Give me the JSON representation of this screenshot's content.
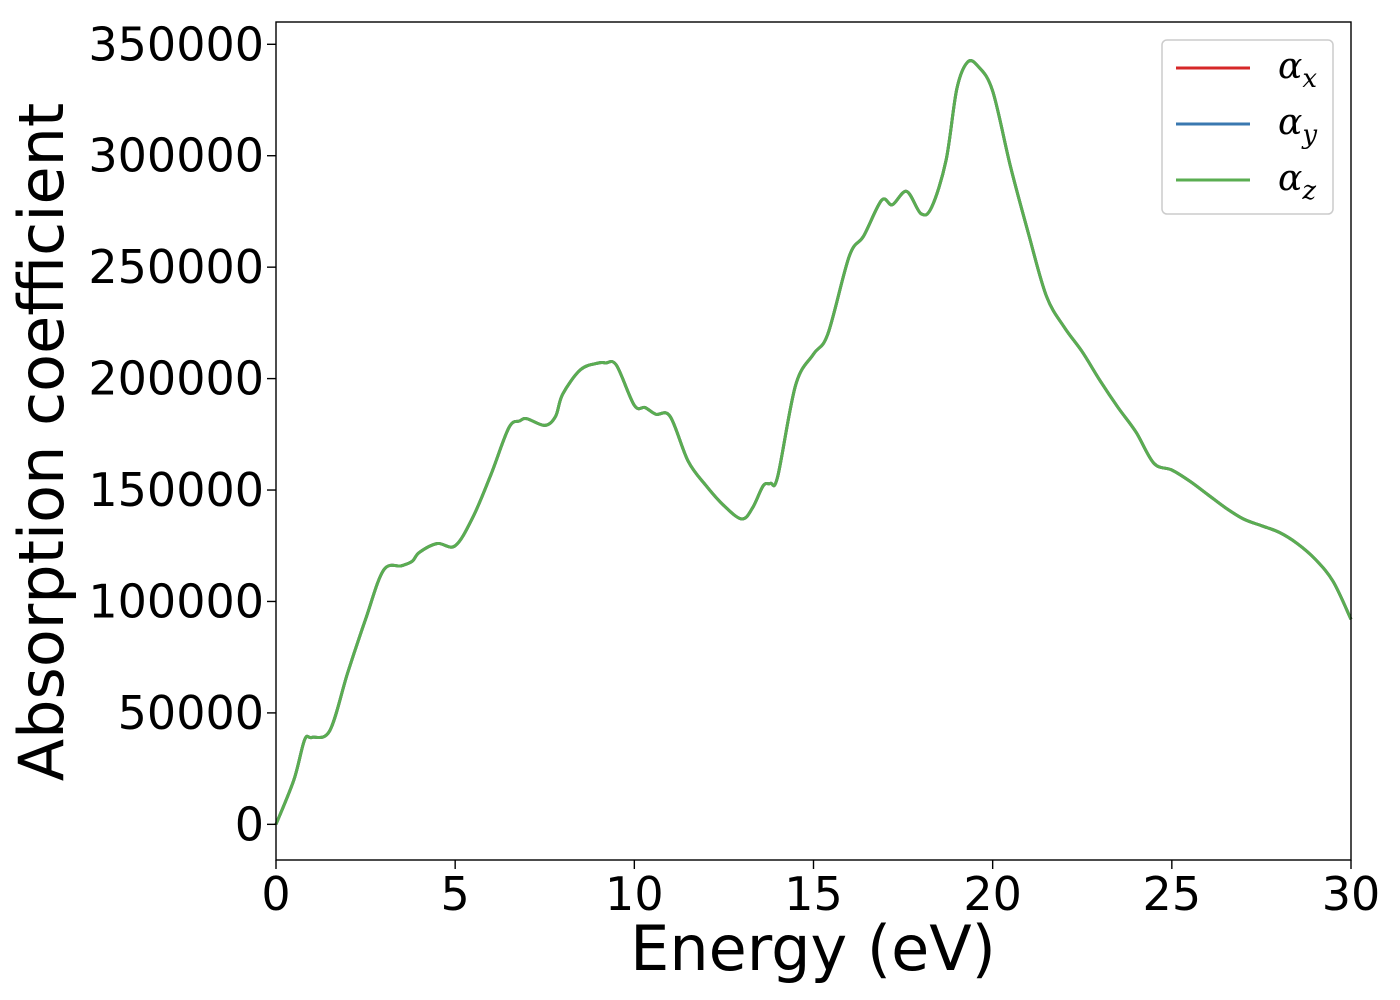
{
  "chart_data": {
    "type": "line",
    "title": "",
    "xlabel": "Energy (eV)",
    "ylabel": "Absorption coefficient",
    "xlim": [
      0,
      30
    ],
    "ylim": [
      -16000,
      360000
    ],
    "xticks": [
      0,
      5,
      10,
      15,
      20,
      25,
      30
    ],
    "xtick_labels": [
      "0",
      "5",
      "10",
      "15",
      "20",
      "25",
      "30"
    ],
    "yticks": [
      0,
      50000,
      100000,
      150000,
      200000,
      250000,
      300000,
      350000
    ],
    "ytick_labels": [
      "0",
      "50000",
      "100000",
      "150000",
      "200000",
      "250000",
      "300000",
      "350000"
    ],
    "grid": false,
    "legend_position": "top-right",
    "x": [
      0,
      0.5,
      0.8,
      1.0,
      1.5,
      2.0,
      2.5,
      3.0,
      3.5,
      3.8,
      4.0,
      4.5,
      5.0,
      5.5,
      6.0,
      6.5,
      6.8,
      7.0,
      7.5,
      7.8,
      8.0,
      8.5,
      9.0,
      9.2,
      9.5,
      10.0,
      10.3,
      10.6,
      11.0,
      11.5,
      12.0,
      12.5,
      13.0,
      13.3,
      13.6,
      13.8,
      14.0,
      14.5,
      15.0,
      15.4,
      16.0,
      16.4,
      16.9,
      17.2,
      17.6,
      18.0,
      18.3,
      18.7,
      19.0,
      19.3,
      19.6,
      20.0,
      20.5,
      21.0,
      21.5,
      22.0,
      22.5,
      23.0,
      23.5,
      24.0,
      24.5,
      25.0,
      25.5,
      26.0,
      26.5,
      27.0,
      27.5,
      28.0,
      28.5,
      29.0,
      29.5,
      30.0
    ],
    "series": [
      {
        "name": "αx",
        "color": "#d62728",
        "values": [
          0,
          20000,
          38000,
          39000,
          42000,
          68000,
          92000,
          114000,
          116000,
          118000,
          122000,
          126000,
          125000,
          138000,
          157000,
          178000,
          181000,
          182000,
          179000,
          183000,
          193000,
          204000,
          207000,
          207000,
          206000,
          188000,
          187000,
          184000,
          183000,
          163000,
          152000,
          143000,
          137000,
          142000,
          152000,
          153000,
          156000,
          197000,
          211000,
          220000,
          255000,
          264000,
          280000,
          278000,
          284000,
          274000,
          277000,
          298000,
          330000,
          342000,
          340000,
          329000,
          295000,
          265000,
          237000,
          223000,
          212000,
          199000,
          187000,
          176000,
          162000,
          159000,
          154000,
          148000,
          142000,
          137000,
          134000,
          131000,
          126000,
          119000,
          109000,
          92000
        ]
      },
      {
        "name": "αy",
        "color": "#3a78b0",
        "values": [
          0,
          20000,
          38000,
          39000,
          42000,
          68000,
          92000,
          114000,
          116000,
          118000,
          122000,
          126000,
          125000,
          138000,
          157000,
          178000,
          181000,
          182000,
          179000,
          183000,
          193000,
          204000,
          207000,
          207000,
          206000,
          188000,
          187000,
          184000,
          183000,
          163000,
          152000,
          143000,
          137000,
          142000,
          152000,
          153000,
          156000,
          197000,
          211000,
          220000,
          255000,
          264000,
          280000,
          278000,
          284000,
          274000,
          277000,
          298000,
          330000,
          342000,
          340000,
          329000,
          295000,
          265000,
          237000,
          223000,
          212000,
          199000,
          187000,
          176000,
          162000,
          159000,
          154000,
          148000,
          142000,
          137000,
          134000,
          131000,
          126000,
          119000,
          109000,
          92000
        ]
      },
      {
        "name": "αz",
        "color": "#5aad51",
        "values": [
          0,
          20000,
          38000,
          39000,
          42000,
          68000,
          92000,
          114000,
          116000,
          118000,
          122000,
          126000,
          125000,
          138000,
          157000,
          178000,
          181000,
          182000,
          179000,
          183000,
          193000,
          204000,
          207000,
          207000,
          206000,
          188000,
          187000,
          184000,
          183000,
          163000,
          152000,
          143000,
          137000,
          142000,
          152000,
          153000,
          156000,
          197000,
          211000,
          220000,
          255000,
          264000,
          280000,
          278000,
          284000,
          274000,
          277000,
          298000,
          330000,
          342000,
          340000,
          329000,
          295000,
          265000,
          237000,
          223000,
          212000,
          199000,
          187000,
          176000,
          162000,
          159000,
          154000,
          148000,
          142000,
          137000,
          134000,
          131000,
          126000,
          119000,
          109000,
          92000
        ]
      }
    ],
    "legend": [
      {
        "base": "α",
        "sub": "x",
        "color": "#d62728"
      },
      {
        "base": "α",
        "sub": "y",
        "color": "#3a78b0"
      },
      {
        "base": "α",
        "sub": "z",
        "color": "#5aad51"
      }
    ]
  }
}
